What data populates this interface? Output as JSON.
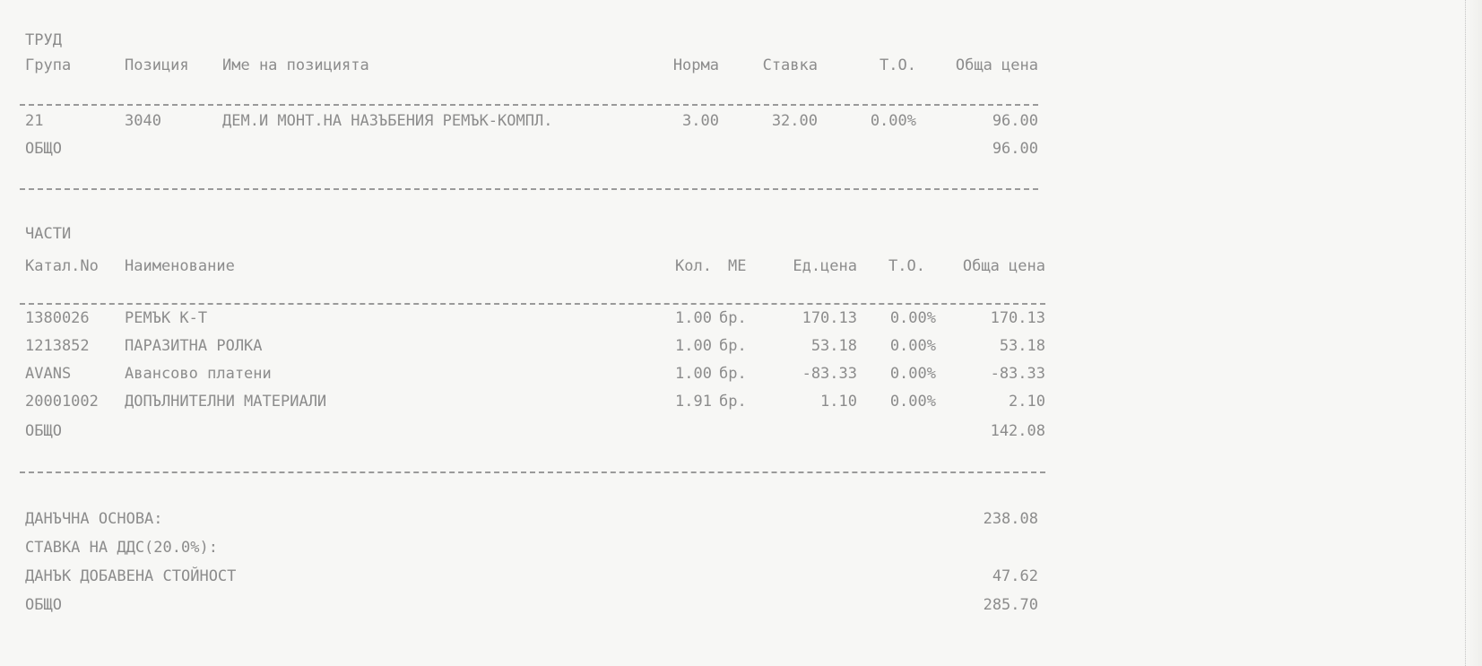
{
  "labor": {
    "title": "ТРУД",
    "headers": {
      "group": "Група",
      "position": "Позиция",
      "name": "Име на позицията",
      "norm": "Норма",
      "rate": "Ставка",
      "discount": "Т.О.",
      "total": "Обща цена"
    },
    "rows": [
      {
        "group": "21",
        "position": "3040",
        "name": "ДЕМ.И МОНТ.НА НАЗЪБЕНИЯ РЕМЪК-КОМПЛ.",
        "norm": "3.00",
        "rate": "32.00",
        "discount": "0.00%",
        "total": "96.00"
      }
    ],
    "subtotal_label": "ОБЩО",
    "subtotal": "96.00"
  },
  "parts": {
    "title": "ЧАСТИ",
    "headers": {
      "catalog": "Катал.No",
      "name": "Наименование",
      "qty": "Кол.",
      "unit": "МЕ",
      "unit_price": "Ед.цена",
      "discount": "Т.О.",
      "total": "Обща цена"
    },
    "rows": [
      {
        "catalog": "1380026",
        "name": "РЕМЪК К-Т",
        "qty": "1.00",
        "unit": "бр.",
        "unit_price": "170.13",
        "discount": "0.00%",
        "total": "170.13"
      },
      {
        "catalog": "1213852",
        "name": "ПАРАЗИТНА РОЛКА",
        "qty": "1.00",
        "unit": "бр.",
        "unit_price": "53.18",
        "discount": "0.00%",
        "total": "53.18"
      },
      {
        "catalog": "AVANS",
        "name": "Авансово платени",
        "qty": "1.00",
        "unit": "бр.",
        "unit_price": "-83.33",
        "discount": "0.00%",
        "total": "-83.33"
      },
      {
        "catalog": "20001002",
        "name": "ДОПЪЛНИТЕЛНИ МАТЕРИАЛИ",
        "qty": "1.91",
        "unit": "бр.",
        "unit_price": "1.10",
        "discount": "0.00%",
        "total": "2.10"
      }
    ],
    "subtotal_label": "ОБЩО",
    "subtotal": "142.08"
  },
  "summary": {
    "tax_base_label": "ДАНЪЧНА ОСНОВА:",
    "tax_base": "238.08",
    "vat_rate_label": "СТАВКА НА ДДС(20.0%):",
    "vat_label": "ДАНЪК ДОБАВЕНА СТОЙНОСТ",
    "vat": "47.62",
    "total_label": "ОБЩО",
    "total": "285.70"
  }
}
